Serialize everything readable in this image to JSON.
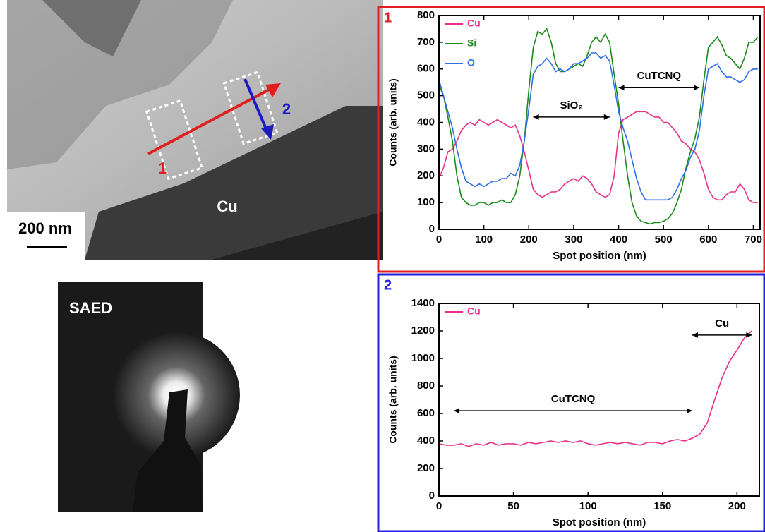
{
  "panels": {
    "tem": {
      "arrow_1": "1",
      "arrow_2": "2",
      "region": "Cu",
      "scale_bar": "200 nm"
    },
    "saed": {
      "label": "SAED"
    }
  },
  "chart_data": [
    {
      "type": "line",
      "label": "1",
      "frame_color": "#e02020",
      "xlabel": "Spot position (nm)",
      "ylabel": "Counts (arb. units)",
      "xlim": [
        0,
        715
      ],
      "xticks": [
        0,
        100,
        200,
        300,
        400,
        500,
        600,
        700
      ],
      "ylim": [
        0,
        800
      ],
      "yticks": [
        0,
        100,
        200,
        300,
        400,
        500,
        600,
        700,
        800
      ],
      "x": [
        0,
        10,
        20,
        30,
        40,
        50,
        60,
        70,
        80,
        90,
        100,
        110,
        120,
        130,
        140,
        150,
        160,
        170,
        180,
        190,
        200,
        210,
        220,
        230,
        240,
        250,
        260,
        270,
        280,
        290,
        300,
        310,
        320,
        330,
        340,
        350,
        360,
        370,
        380,
        390,
        400,
        410,
        420,
        430,
        440,
        450,
        460,
        470,
        480,
        490,
        500,
        510,
        520,
        530,
        540,
        550,
        560,
        570,
        580,
        590,
        600,
        610,
        620,
        630,
        640,
        650,
        660,
        670,
        680,
        690,
        700,
        710
      ],
      "series": [
        {
          "name": "Cu",
          "color": "#e8308c",
          "values": [
            190,
            230,
            290,
            300,
            330,
            370,
            390,
            400,
            390,
            410,
            400,
            390,
            400,
            410,
            400,
            390,
            380,
            390,
            350,
            290,
            220,
            150,
            130,
            120,
            130,
            140,
            140,
            150,
            170,
            180,
            190,
            180,
            200,
            190,
            170,
            140,
            130,
            120,
            130,
            200,
            360,
            410,
            420,
            430,
            440,
            440,
            440,
            430,
            420,
            420,
            400,
            400,
            380,
            360,
            330,
            320,
            300,
            290,
            260,
            210,
            150,
            120,
            110,
            110,
            130,
            140,
            140,
            170,
            150,
            110,
            100,
            100
          ]
        },
        {
          "name": "Si",
          "color": "#1a8a1a",
          "values": [
            540,
            500,
            420,
            330,
            200,
            120,
            100,
            90,
            90,
            100,
            100,
            90,
            100,
            100,
            110,
            100,
            100,
            130,
            200,
            330,
            520,
            680,
            740,
            730,
            750,
            700,
            620,
            590,
            590,
            600,
            610,
            620,
            610,
            650,
            700,
            720,
            700,
            730,
            700,
            580,
            470,
            330,
            200,
            100,
            50,
            30,
            25,
            20,
            25,
            25,
            30,
            40,
            60,
            100,
            150,
            230,
            290,
            340,
            420,
            560,
            680,
            700,
            720,
            690,
            650,
            640,
            620,
            600,
            640,
            700,
            700,
            720
          ]
        },
        {
          "name": "O",
          "color": "#2f6fe8",
          "values": [
            560,
            500,
            440,
            380,
            300,
            230,
            180,
            170,
            160,
            170,
            160,
            170,
            180,
            180,
            190,
            190,
            210,
            200,
            240,
            330,
            450,
            580,
            610,
            620,
            640,
            620,
            590,
            600,
            590,
            600,
            620,
            620,
            630,
            640,
            660,
            660,
            640,
            650,
            630,
            540,
            440,
            380,
            330,
            260,
            190,
            140,
            110,
            110,
            110,
            110,
            110,
            110,
            120,
            150,
            190,
            220,
            270,
            300,
            370,
            500,
            600,
            610,
            620,
            590,
            570,
            570,
            560,
            550,
            560,
            590,
            600,
            600
          ]
        }
      ],
      "annotations": [
        {
          "text": "SiO₂",
          "x": [
            210,
            380
          ],
          "y": 420
        },
        {
          "text": "CuTCNQ",
          "x": [
            400,
            580
          ],
          "y": 530
        }
      ]
    },
    {
      "type": "line",
      "label": "2",
      "frame_color": "#2020e0",
      "xlabel": "Spot position (nm)",
      "ylabel": "Counts (arb. units)",
      "xlim": [
        0,
        215
      ],
      "xticks": [
        0,
        50,
        100,
        150,
        200
      ],
      "ylim": [
        0,
        1400
      ],
      "yticks": [
        0,
        200,
        400,
        600,
        800,
        1000,
        1200,
        1400
      ],
      "x": [
        0,
        5,
        10,
        15,
        20,
        25,
        30,
        35,
        40,
        45,
        50,
        55,
        60,
        65,
        70,
        75,
        80,
        85,
        90,
        95,
        100,
        105,
        110,
        115,
        120,
        125,
        130,
        135,
        140,
        145,
        150,
        155,
        160,
        165,
        170,
        175,
        180,
        185,
        190,
        195,
        200,
        205,
        210
      ],
      "series": [
        {
          "name": "Cu",
          "color": "#e8308c",
          "values": [
            380,
            370,
            370,
            380,
            360,
            380,
            370,
            390,
            370,
            380,
            380,
            370,
            390,
            380,
            390,
            400,
            390,
            400,
            390,
            400,
            380,
            370,
            380,
            390,
            380,
            390,
            380,
            370,
            390,
            390,
            380,
            400,
            410,
            400,
            420,
            450,
            530,
            700,
            860,
            980,
            1060,
            1150,
            1200
          ]
        }
      ],
      "annotations": [
        {
          "text": "CuTCNQ",
          "x": [
            10,
            170
          ],
          "y": 620
        },
        {
          "text": "Cu",
          "x": [
            170,
            210
          ],
          "y": 1170
        }
      ]
    }
  ]
}
